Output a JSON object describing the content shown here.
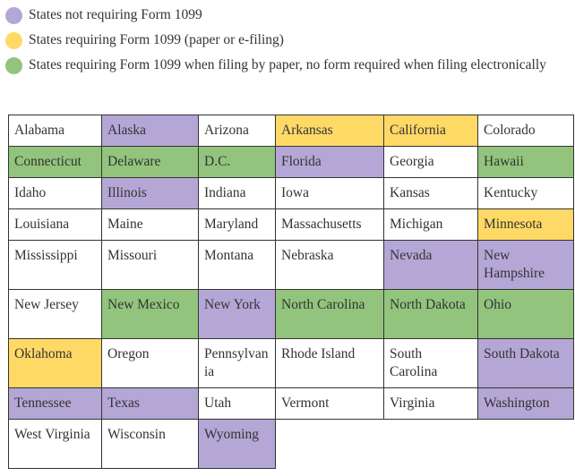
{
  "legend": [
    {
      "text": "States not requiring Form 1099",
      "color": "#b4a7d6"
    },
    {
      "text": "States requiring Form 1099 (paper or e-filing)",
      "color": "#ffd966"
    },
    {
      "text": "States requiring Form 1099 when filing by paper, no form required when filing electronically",
      "color": "#93c47d"
    }
  ],
  "table": {
    "rows": [
      [
        {
          "text": "Alabama",
          "fill": "#ffffff"
        },
        {
          "text": "Alaska",
          "fill": "#b4a7d6"
        },
        {
          "text": "Arizona",
          "fill": "#ffffff"
        },
        {
          "text": "Arkansas",
          "fill": "#ffd966"
        },
        {
          "text": "California",
          "fill": "#ffd966"
        },
        {
          "text": "Colorado",
          "fill": "#ffffff"
        }
      ],
      [
        {
          "text": "Connecticut",
          "fill": "#93c47d"
        },
        {
          "text": "Delaware",
          "fill": "#93c47d"
        },
        {
          "text": "D.C.",
          "fill": "#93c47d"
        },
        {
          "text": "Florida",
          "fill": "#b4a7d6"
        },
        {
          "text": "Georgia",
          "fill": "#ffffff"
        },
        {
          "text": "Hawaii",
          "fill": "#93c47d"
        }
      ],
      [
        {
          "text": "Idaho",
          "fill": "#ffffff"
        },
        {
          "text": "Illinois",
          "fill": "#b4a7d6"
        },
        {
          "text": "Indiana",
          "fill": "#ffffff"
        },
        {
          "text": "Iowa",
          "fill": "#ffffff"
        },
        {
          "text": "Kansas",
          "fill": "#ffffff"
        },
        {
          "text": "Kentucky",
          "fill": "#ffffff"
        }
      ],
      [
        {
          "text": "Louisiana",
          "fill": "#ffffff"
        },
        {
          "text": "Maine",
          "fill": "#ffffff"
        },
        {
          "text": "Maryland",
          "fill": "#ffffff"
        },
        {
          "text": "Massachusetts",
          "fill": "#ffffff"
        },
        {
          "text": "Michigan",
          "fill": "#ffffff"
        },
        {
          "text": "Minnesota",
          "fill": "#ffd966"
        }
      ],
      [
        {
          "text": "Mississippi",
          "fill": "#ffffff"
        },
        {
          "text": "Missouri",
          "fill": "#ffffff"
        },
        {
          "text": "Montana",
          "fill": "#ffffff"
        },
        {
          "text": "Nebraska",
          "fill": "#ffffff"
        },
        {
          "text": "Nevada",
          "fill": "#b4a7d6"
        },
        {
          "text": "New Hampshire",
          "fill": "#b4a7d6"
        }
      ],
      [
        {
          "text": "New Jersey",
          "fill": "#ffffff"
        },
        {
          "text": "New Mexico",
          "fill": "#93c47d"
        },
        {
          "text": "New York",
          "fill": "#b4a7d6"
        },
        {
          "text": "North Carolina",
          "fill": "#93c47d"
        },
        {
          "text": "North Dakota",
          "fill": "#93c47d"
        },
        {
          "text": "Ohio",
          "fill": "#93c47d"
        }
      ],
      [
        {
          "text": "Oklahoma",
          "fill": "#ffd966"
        },
        {
          "text": "Oregon",
          "fill": "#ffffff"
        },
        {
          "text": "Pennsylvania",
          "fill": "#ffffff"
        },
        {
          "text": "Rhode Island",
          "fill": "#ffffff"
        },
        {
          "text": "South Carolina",
          "fill": "#ffffff"
        },
        {
          "text": "South Dakota",
          "fill": "#b4a7d6"
        }
      ],
      [
        {
          "text": "Tennessee",
          "fill": "#b4a7d6"
        },
        {
          "text": "Texas",
          "fill": "#b4a7d6"
        },
        {
          "text": "Utah",
          "fill": "#ffffff"
        },
        {
          "text": "Vermont",
          "fill": "#ffffff"
        },
        {
          "text": "Virginia",
          "fill": "#ffffff"
        },
        {
          "text": "Washington",
          "fill": "#b4a7d6"
        }
      ],
      [
        {
          "text": "West Virginia",
          "fill": "#ffffff"
        },
        {
          "text": "Wisconsin",
          "fill": "#ffffff"
        },
        {
          "text": "Wyoming",
          "fill": "#b4a7d6"
        }
      ]
    ]
  }
}
